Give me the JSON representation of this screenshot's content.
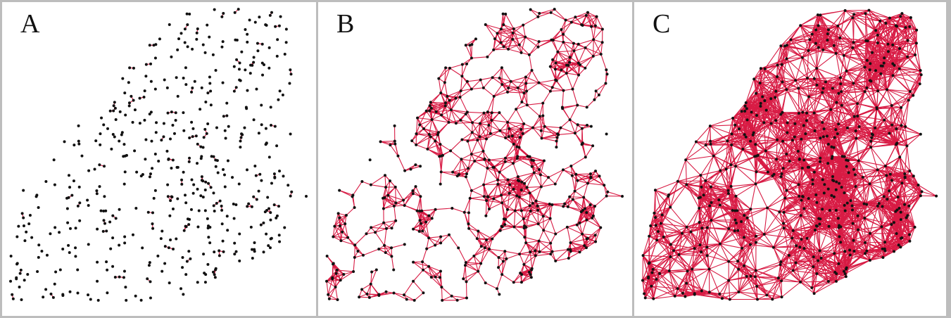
{
  "panels": [
    {
      "label": "A",
      "threshold": 0.32
    },
    {
      "label": "B",
      "threshold": 1.1
    },
    {
      "label": "C",
      "threshold": 1.85
    }
  ],
  "colors": {
    "edge": "#d81b44",
    "node": "#111111",
    "background": "#ffffff",
    "frame": "#bdbdbd"
  }
}
